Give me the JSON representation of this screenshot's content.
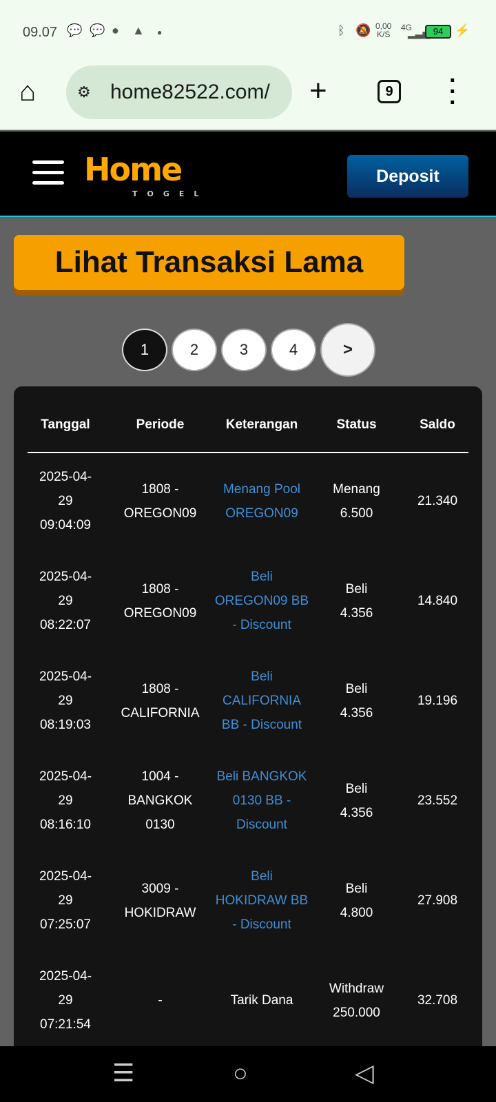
{
  "status_bar": {
    "time": "09.07",
    "net_speed": "0,00",
    "net_unit": "K/S",
    "network": "4G",
    "battery": "94"
  },
  "browser": {
    "url": "home82522.com/",
    "tab_count": "9"
  },
  "header": {
    "logo": "Home",
    "logo_sub": "TOGEL",
    "deposit_label": "Deposit"
  },
  "old_transactions_label": "Lihat Transaksi Lama",
  "pagination": {
    "pages": [
      "1",
      "2",
      "3",
      "4"
    ],
    "next": ">",
    "current": "1"
  },
  "table": {
    "columns": [
      "Tanggal",
      "Periode",
      "Keterangan",
      "Status",
      "Saldo"
    ],
    "rows": [
      {
        "tanggal": [
          "2025-04-",
          "29",
          "09:04:09"
        ],
        "periode": [
          "1808 -",
          "OREGON09"
        ],
        "keterangan": [
          "Menang Pool",
          "OREGON09"
        ],
        "status": [
          "Menang",
          "6.500"
        ],
        "saldo": "21.340"
      },
      {
        "tanggal": [
          "2025-04-",
          "29",
          "08:22:07"
        ],
        "periode": [
          "1808 -",
          "OREGON09"
        ],
        "keterangan": [
          "Beli",
          "OREGON09 BB",
          "- Discount"
        ],
        "status": [
          "Beli",
          "4.356"
        ],
        "saldo": "14.840"
      },
      {
        "tanggal": [
          "2025-04-",
          "29",
          "08:19:03"
        ],
        "periode": [
          "1808 -",
          "CALIFORNIA"
        ],
        "keterangan": [
          "Beli",
          "CALIFORNIA",
          "BB - Discount"
        ],
        "status": [
          "Beli",
          "4.356"
        ],
        "saldo": "19.196"
      },
      {
        "tanggal": [
          "2025-04-",
          "29",
          "08:16:10"
        ],
        "periode": [
          "1004 -",
          "BANGKOK",
          "0130"
        ],
        "keterangan": [
          "Beli BANGKOK",
          "0130 BB -",
          "Discount"
        ],
        "status": [
          "Beli",
          "4.356"
        ],
        "saldo": "23.552"
      },
      {
        "tanggal": [
          "2025-04-",
          "29",
          "07:25:07"
        ],
        "periode": [
          "3009 -",
          "HOKIDRAW"
        ],
        "keterangan": [
          "Beli",
          "HOKIDRAW BB",
          "- Discount"
        ],
        "status": [
          "Beli",
          "4.800"
        ],
        "saldo": "27.908"
      },
      {
        "tanggal": [
          "2025-04-",
          "29",
          "07:21:54"
        ],
        "periode": [
          "-"
        ],
        "keterangan": [
          "Tarik Dana"
        ],
        "status": [
          "Withdraw",
          "250.000"
        ],
        "saldo": "32.708"
      }
    ]
  }
}
